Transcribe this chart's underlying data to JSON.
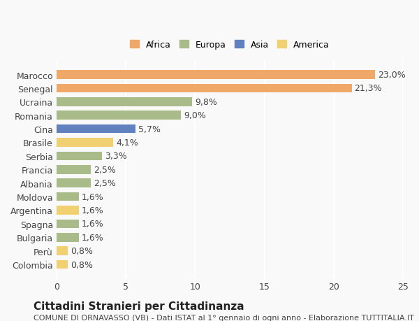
{
  "categories": [
    "Colombia",
    "Perù",
    "Bulgaria",
    "Spagna",
    "Argentina",
    "Moldova",
    "Albania",
    "Francia",
    "Serbia",
    "Brasile",
    "Cina",
    "Romania",
    "Ucraina",
    "Senegal",
    "Marocco"
  ],
  "values": [
    0.8,
    0.8,
    1.6,
    1.6,
    1.6,
    1.6,
    2.5,
    2.5,
    3.3,
    4.1,
    5.7,
    9.0,
    9.8,
    21.3,
    23.0
  ],
  "labels": [
    "0,8%",
    "0,8%",
    "1,6%",
    "1,6%",
    "1,6%",
    "1,6%",
    "2,5%",
    "2,5%",
    "3,3%",
    "4,1%",
    "5,7%",
    "9,0%",
    "9,8%",
    "21,3%",
    "23,0%"
  ],
  "continents": [
    "America",
    "America",
    "Europa",
    "Europa",
    "America",
    "Europa",
    "Europa",
    "Europa",
    "Europa",
    "America",
    "Asia",
    "Europa",
    "Europa",
    "Africa",
    "Africa"
  ],
  "continent_colors": {
    "Africa": "#F0A868",
    "Europa": "#A8BB88",
    "Asia": "#6080C0",
    "America": "#F0D070"
  },
  "legend_order": [
    "Africa",
    "Europa",
    "Asia",
    "America"
  ],
  "title": "Cittadini Stranieri per Cittadinanza",
  "subtitle": "COMUNE DI ORNAVASSO (VB) - Dati ISTAT al 1° gennaio di ogni anno - Elaborazione TUTTITALIA.IT",
  "xlim": [
    0,
    25
  ],
  "xticks": [
    0,
    5,
    10,
    15,
    20,
    25
  ],
  "background_color": "#f9f9f9",
  "grid_color": "#ffffff",
  "bar_height": 0.65,
  "label_fontsize": 9,
  "tick_fontsize": 9,
  "title_fontsize": 11,
  "subtitle_fontsize": 8
}
